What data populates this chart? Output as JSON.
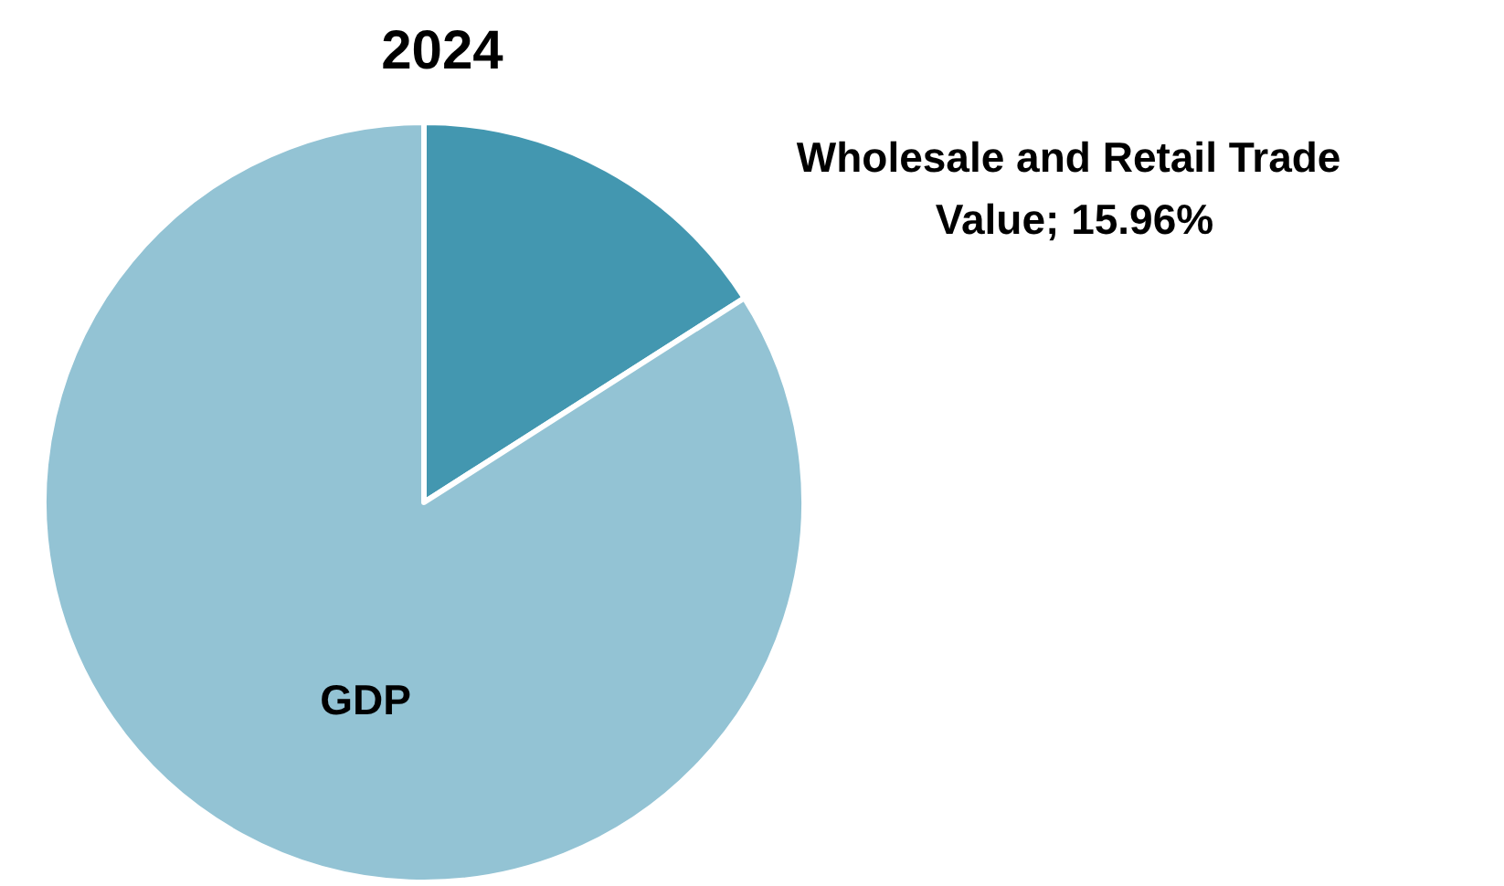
{
  "chart_data": {
    "type": "pie",
    "title": "2024",
    "categories": [
      "Wholesale and Retail Trade Value",
      "GDP"
    ],
    "values": [
      15.96,
      84.04
    ],
    "value_labels": [
      "15.96%",
      null
    ],
    "colors": [
      "#4397b0",
      "#93c3d4"
    ]
  }
}
